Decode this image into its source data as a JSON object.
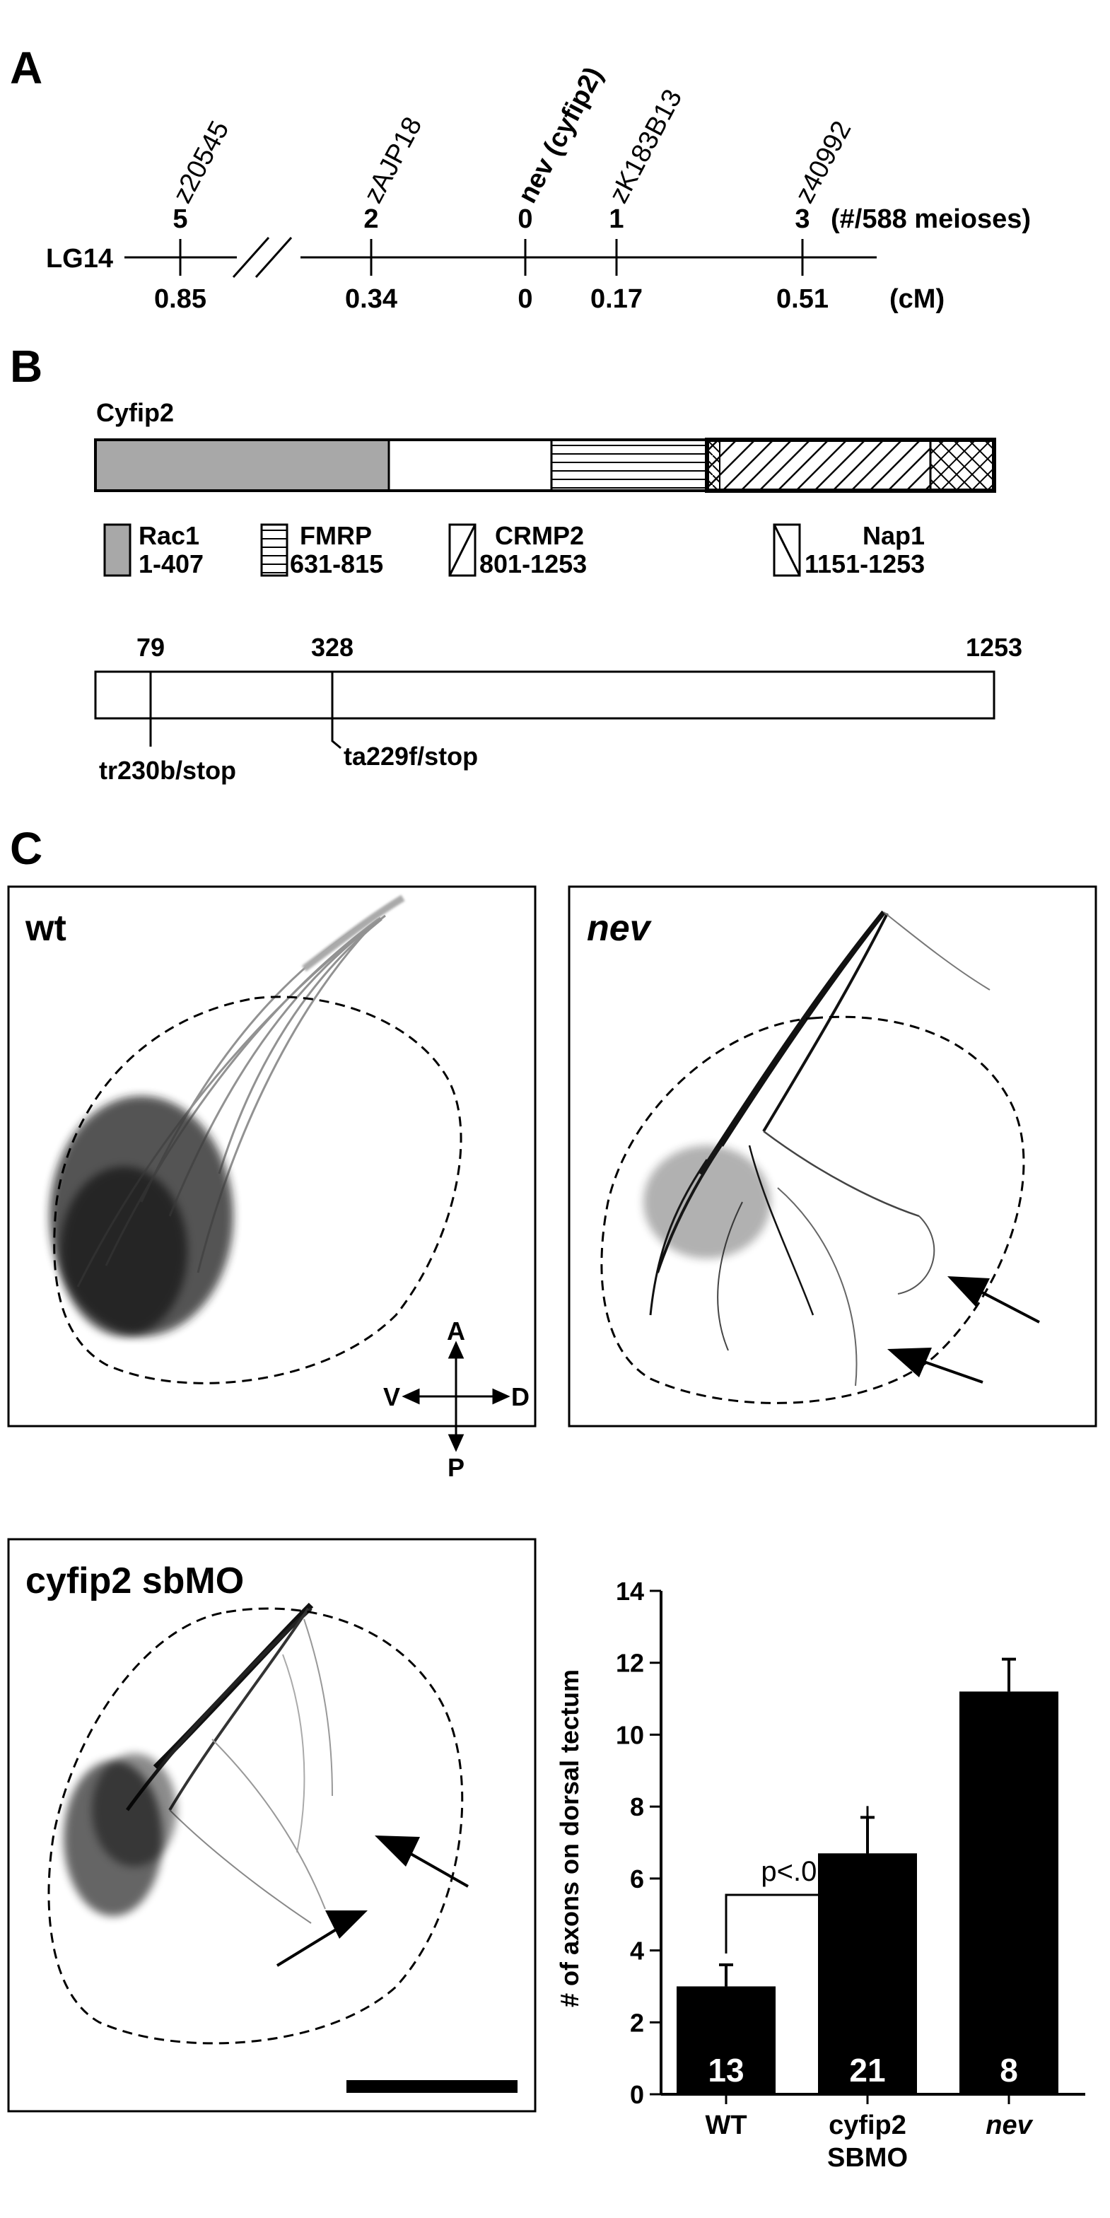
{
  "panels": {
    "a": "A",
    "b": "B",
    "c": "C"
  },
  "panel_a": {
    "linkage_group": "LG14",
    "meioses_note": "(#/588 meioses)",
    "unit": "(cM)",
    "markers": [
      {
        "name": "z20545",
        "count": "5",
        "cm": "0.85",
        "bold": false
      },
      {
        "name": "zAJP18",
        "count": "2",
        "cm": "0.34",
        "bold": false
      },
      {
        "name": "nev (cyfip2)",
        "count": "0",
        "cm": "0",
        "bold": true
      },
      {
        "name": "zK183B13",
        "count": "1",
        "cm": "0.17",
        "bold": false
      },
      {
        "name": "z40992",
        "count": "3",
        "cm": "0.51",
        "bold": false
      }
    ]
  },
  "panel_b": {
    "protein": "Cyfip2",
    "domains": [
      {
        "name": "Rac1",
        "range": "1-407"
      },
      {
        "name": "FMRP",
        "range": "631-815"
      },
      {
        "name": "CRMP2",
        "range": "801-1253"
      },
      {
        "name": "Nap1",
        "range": "1151-1253"
      }
    ],
    "positions": [
      "79",
      "328",
      "1253"
    ],
    "mutations": [
      "tr230b/stop",
      "ta229f/stop"
    ]
  },
  "panel_c": {
    "images": [
      {
        "label": "wt",
        "italic": false
      },
      {
        "label": "nev",
        "italic": true
      },
      {
        "label": "cyfip2 sbMO",
        "italic": false
      }
    ],
    "compass": {
      "a": "A",
      "p": "P",
      "v": "V",
      "d": "D"
    }
  },
  "chart_data": {
    "type": "bar",
    "categories": [
      "WT",
      "cyfip2 SBMO",
      "nev"
    ],
    "category_lines": [
      [
        "WT"
      ],
      [
        "cyfip2",
        "SBMO"
      ],
      [
        "nev"
      ]
    ],
    "values": [
      3.0,
      6.7,
      11.2
    ],
    "errors": [
      0.6,
      1.0,
      0.9
    ],
    "n_labels": [
      "13",
      "21",
      "8"
    ],
    "ylabel": "# of axons on dorsal tectum",
    "ylim": [
      0,
      14
    ],
    "yticks": [
      "0",
      "2",
      "4",
      "6",
      "8",
      "10",
      "12",
      "14"
    ],
    "annotation": "p<.01",
    "bar_color": "#000000"
  }
}
